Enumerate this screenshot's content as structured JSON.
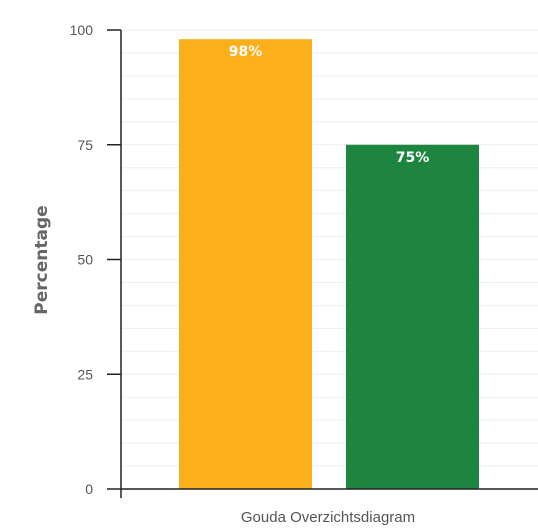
{
  "chart_data": {
    "type": "bar",
    "categories": [
      "Gouda Overzichtsdiagram"
    ],
    "series": [
      {
        "values": [
          98
        ],
        "data_label": "98%",
        "color": "#FBAF1B"
      },
      {
        "values": [
          75
        ],
        "data_label": "75%",
        "color": "#1E8540"
      }
    ],
    "ylabel": "Percentage",
    "xlabel": "",
    "ylim": [
      0,
      100
    ],
    "yticks": [
      0,
      25,
      50,
      75,
      100
    ],
    "grid": true,
    "gridline_color": "#eeeeee",
    "axis_color": "#222222"
  }
}
